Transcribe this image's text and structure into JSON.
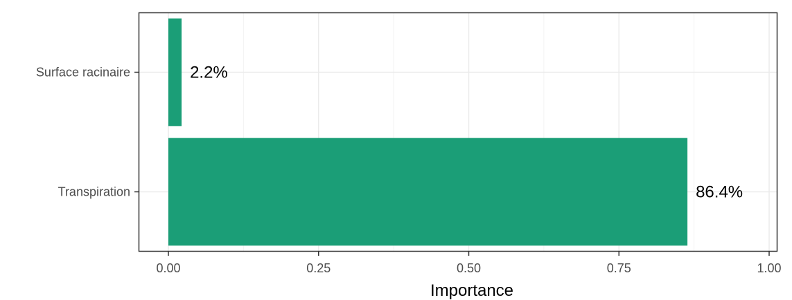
{
  "chart_data": {
    "type": "bar",
    "orientation": "horizontal",
    "categories": [
      "Surface racinaire",
      "Transpiration"
    ],
    "values": [
      0.022,
      0.864
    ],
    "data_labels": [
      "2.2%",
      "86.4%"
    ],
    "xlabel": "Importance",
    "ylabel": "",
    "title": "",
    "xlim": [
      0,
      1
    ],
    "xticks": [
      0,
      0.25,
      0.5,
      0.75,
      1
    ],
    "xtick_labels": [
      "0.00",
      "0.25",
      "0.50",
      "0.75",
      "1.00"
    ],
    "bar_color": "#1b9e77",
    "grid": true,
    "legend": "none"
  }
}
